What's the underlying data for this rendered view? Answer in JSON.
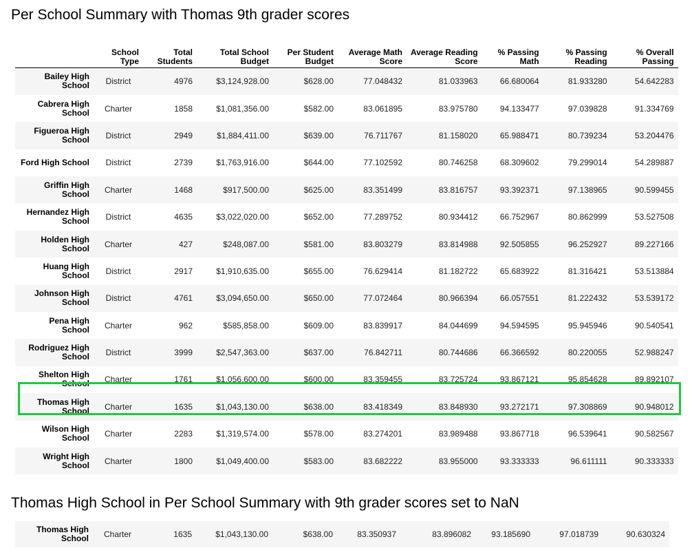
{
  "heading1": "Per School Summary with Thomas 9th grader scores",
  "heading2": "Thomas High School in Per School Summary with 9th grader scores set to NaN",
  "columns": [
    {
      "line1": "School",
      "line2": "Type"
    },
    {
      "line1": "Total",
      "line2": "Students"
    },
    {
      "line1": "Total School",
      "line2": "Budget"
    },
    {
      "line1": "Per Student",
      "line2": "Budget"
    },
    {
      "line1": "Average Math",
      "line2": "Score"
    },
    {
      "line1": "Average Reading",
      "line2": "Score"
    },
    {
      "line1": "% Passing",
      "line2": "Math"
    },
    {
      "line1": "% Passing",
      "line2": "Reading"
    },
    {
      "line1": "% Overall",
      "line2": "Passing"
    }
  ],
  "rows": [
    {
      "name1": "Bailey High",
      "name2": "School",
      "type": "District",
      "students": "4976",
      "budget": "$3,124,928.00",
      "per_student": "$628.00",
      "math": "77.048432",
      "reading": "81.033963",
      "pass_math": "66.680064",
      "pass_reading": "81.933280",
      "overall": "54.642283"
    },
    {
      "name1": "Cabrera High",
      "name2": "School",
      "type": "Charter",
      "students": "1858",
      "budget": "$1,081,356.00",
      "per_student": "$582.00",
      "math": "83.061895",
      "reading": "83.975780",
      "pass_math": "94.133477",
      "pass_reading": "97.039828",
      "overall": "91.334769"
    },
    {
      "name1": "Figueroa High",
      "name2": "School",
      "type": "District",
      "students": "2949",
      "budget": "$1,884,411.00",
      "per_student": "$639.00",
      "math": "76.711767",
      "reading": "81.158020",
      "pass_math": "65.988471",
      "pass_reading": "80.739234",
      "overall": "53.204476"
    },
    {
      "name1": "Ford High School",
      "name2": "",
      "type": "District",
      "students": "2739",
      "budget": "$1,763,916.00",
      "per_student": "$644.00",
      "math": "77.102592",
      "reading": "80.746258",
      "pass_math": "68.309602",
      "pass_reading": "79.299014",
      "overall": "54.289887"
    },
    {
      "name1": "Griffin High",
      "name2": "School",
      "type": "Charter",
      "students": "1468",
      "budget": "$917,500.00",
      "per_student": "$625.00",
      "math": "83.351499",
      "reading": "83.816757",
      "pass_math": "93.392371",
      "pass_reading": "97.138965",
      "overall": "90.599455"
    },
    {
      "name1": "Hernandez High",
      "name2": "School",
      "type": "District",
      "students": "4635",
      "budget": "$3,022,020.00",
      "per_student": "$652.00",
      "math": "77.289752",
      "reading": "80.934412",
      "pass_math": "66.752967",
      "pass_reading": "80.862999",
      "overall": "53.527508"
    },
    {
      "name1": "Holden High",
      "name2": "School",
      "type": "Charter",
      "students": "427",
      "budget": "$248,087.00",
      "per_student": "$581.00",
      "math": "83.803279",
      "reading": "83.814988",
      "pass_math": "92.505855",
      "pass_reading": "96.252927",
      "overall": "89.227166"
    },
    {
      "name1": "Huang High",
      "name2": "School",
      "type": "District",
      "students": "2917",
      "budget": "$1,910,635.00",
      "per_student": "$655.00",
      "math": "76.629414",
      "reading": "81.182722",
      "pass_math": "65.683922",
      "pass_reading": "81.316421",
      "overall": "53.513884"
    },
    {
      "name1": "Johnson High",
      "name2": "School",
      "type": "District",
      "students": "4761",
      "budget": "$3,094,650.00",
      "per_student": "$650.00",
      "math": "77.072464",
      "reading": "80.966394",
      "pass_math": "66.057551",
      "pass_reading": "81.222432",
      "overall": "53.539172"
    },
    {
      "name1": "Pena High",
      "name2": "School",
      "type": "Charter",
      "students": "962",
      "budget": "$585,858.00",
      "per_student": "$609.00",
      "math": "83.839917",
      "reading": "84.044699",
      "pass_math": "94.594595",
      "pass_reading": "95.945946",
      "overall": "90.540541"
    },
    {
      "name1": "Rodriguez High",
      "name2": "School",
      "type": "District",
      "students": "3999",
      "budget": "$2,547,363.00",
      "per_student": "$637.00",
      "math": "76.842711",
      "reading": "80.744686",
      "pass_math": "66.366592",
      "pass_reading": "80.220055",
      "overall": "52.988247"
    },
    {
      "name1": "Shelton High",
      "name2": "School",
      "type": "Charter",
      "students": "1761",
      "budget": "$1,056,600.00",
      "per_student": "$600.00",
      "math": "83.359455",
      "reading": "83.725724",
      "pass_math": "93.867121",
      "pass_reading": "95.854628",
      "overall": "89.892107"
    },
    {
      "name1": "Thomas High",
      "name2": "School",
      "type": "Charter",
      "students": "1635",
      "budget": "$1,043,130.00",
      "per_student": "$638.00",
      "math": "83.418349",
      "reading": "83.848930",
      "pass_math": "93.272171",
      "pass_reading": "97.308869",
      "overall": "90.948012"
    },
    {
      "name1": "Wilson High",
      "name2": "School",
      "type": "Charter",
      "students": "2283",
      "budget": "$1,319,574.00",
      "per_student": "$578.00",
      "math": "83.274201",
      "reading": "83.989488",
      "pass_math": "93.867718",
      "pass_reading": "96.539641",
      "overall": "90.582567"
    },
    {
      "name1": "Wright High",
      "name2": "School",
      "type": "Charter",
      "students": "1800",
      "budget": "$1,049,400.00",
      "per_student": "$583.00",
      "math": "83.682222",
      "reading": "83.955000",
      "pass_math": "93.333333",
      "pass_reading": "96.611111",
      "overall": "90.333333"
    }
  ],
  "highlight_color": "#1ec940",
  "thomas_nan_row": {
    "name1": "Thomas High",
    "name2": "School",
    "type": "Charter",
    "students": "1635",
    "budget": "$1,043,130.00",
    "per_student": "$638.00",
    "math": "83.350937",
    "reading": "83.896082",
    "pass_math": "93.185690",
    "pass_reading": "97.018739",
    "overall": "90.630324"
  }
}
